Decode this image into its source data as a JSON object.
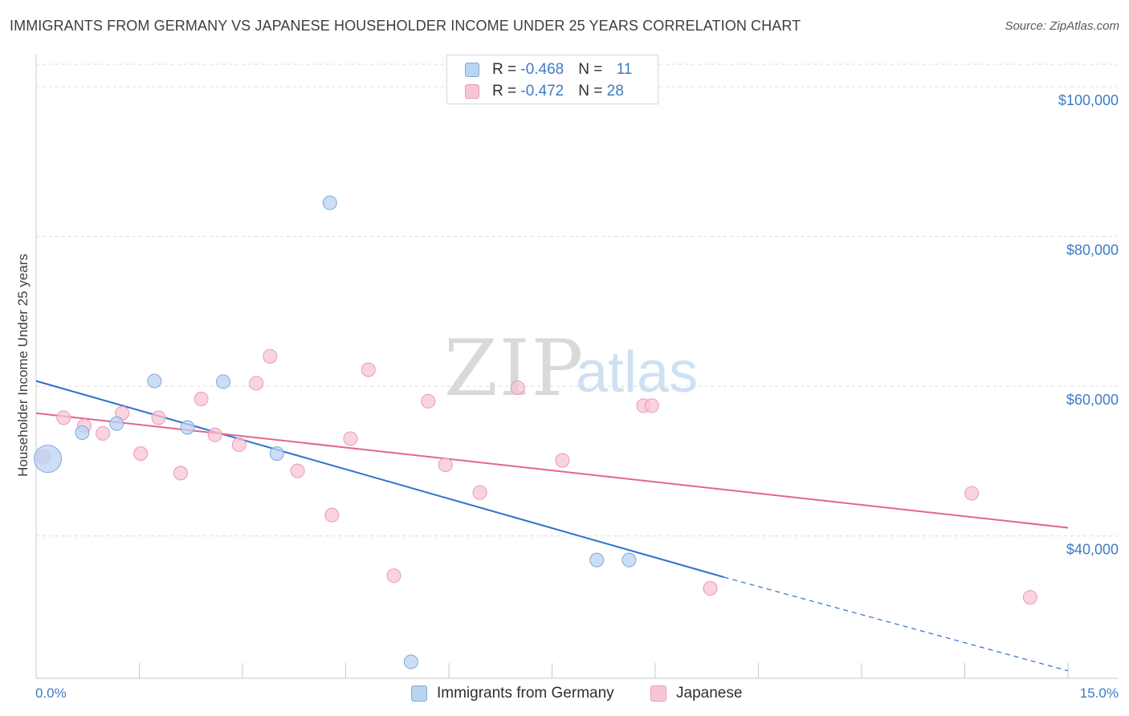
{
  "header": {
    "title": "IMMIGRANTS FROM GERMANY VS JAPANESE HOUSEHOLDER INCOME UNDER 25 YEARS CORRELATION CHART",
    "source": "Source: ZipAtlas.com"
  },
  "watermark": {
    "zip": "ZIP",
    "atlas": "atlas"
  },
  "legend": {
    "rows": [
      {
        "r_label": "R = ",
        "r_value": "-0.468",
        "n_label": "N = ",
        "n_value": "11"
      },
      {
        "r_label": "R = ",
        "r_value": "-0.472",
        "n_label": "N = ",
        "n_value": "28"
      }
    ]
  },
  "bottom_legend": {
    "germany": "Immigrants from Germany",
    "japanese": "Japanese"
  },
  "colors": {
    "germany_fill": "#b9d3f2",
    "germany_stroke": "#7fa9dc",
    "germany_line": "#2f6fce",
    "japanese_fill": "#f7c6d5",
    "japanese_stroke": "#ec97b2",
    "japanese_line": "#e06591",
    "tick_text": "#3f7ac6",
    "grid": "#dcdcdc"
  },
  "chart_data": {
    "type": "scatter",
    "title": "IMMIGRANTS FROM GERMANY VS JAPANESE HOUSEHOLDER INCOME UNDER 25 YEARS CORRELATION CHART",
    "xlabel": "",
    "ylabel": "Householder Income Under 25 years",
    "xlim": [
      0,
      15
    ],
    "ylim": [
      21000,
      103000
    ],
    "x_tick_labels": [
      "0.0%",
      "15.0%"
    ],
    "y_ticks": [
      {
        "value": 40000,
        "label": "$40,000"
      },
      {
        "value": 60000,
        "label": "$60,000"
      },
      {
        "value": 80000,
        "label": "$80,000"
      },
      {
        "value": 100000,
        "label": "$100,000"
      }
    ],
    "grid": true,
    "series": [
      {
        "name": "Immigrants from Germany",
        "r": -0.468,
        "n": 11,
        "points": [
          {
            "x": 0.17,
            "y": 50300,
            "big": true
          },
          {
            "x": 0.67,
            "y": 53800
          },
          {
            "x": 1.17,
            "y": 55000
          },
          {
            "x": 1.72,
            "y": 60700
          },
          {
            "x": 2.2,
            "y": 54500
          },
          {
            "x": 2.72,
            "y": 60600
          },
          {
            "x": 3.5,
            "y": 51000
          },
          {
            "x": 4.27,
            "y": 84500
          },
          {
            "x": 5.45,
            "y": 23200
          },
          {
            "x": 8.15,
            "y": 36800
          },
          {
            "x": 8.62,
            "y": 36800
          }
        ],
        "trend": {
          "x0": 0,
          "y0": 60700,
          "x1": 10.0,
          "y1": 34500,
          "dash_to_x": 15,
          "dash_to_y": 22000
        }
      },
      {
        "name": "Japanese",
        "r": -0.472,
        "n": 28,
        "points": [
          {
            "x": 0.1,
            "y": 50500
          },
          {
            "x": 0.4,
            "y": 55800
          },
          {
            "x": 0.7,
            "y": 54700
          },
          {
            "x": 0.97,
            "y": 53700
          },
          {
            "x": 1.25,
            "y": 56400
          },
          {
            "x": 1.52,
            "y": 51000
          },
          {
            "x": 1.78,
            "y": 55800
          },
          {
            "x": 2.1,
            "y": 48400
          },
          {
            "x": 2.4,
            "y": 58300
          },
          {
            "x": 2.6,
            "y": 53500
          },
          {
            "x": 2.95,
            "y": 52200
          },
          {
            "x": 3.2,
            "y": 60400
          },
          {
            "x": 3.4,
            "y": 64000
          },
          {
            "x": 3.8,
            "y": 48700
          },
          {
            "x": 4.3,
            "y": 42800
          },
          {
            "x": 4.57,
            "y": 53000
          },
          {
            "x": 4.83,
            "y": 62200
          },
          {
            "x": 5.2,
            "y": 34700
          },
          {
            "x": 5.7,
            "y": 58000
          },
          {
            "x": 5.95,
            "y": 49500
          },
          {
            "x": 6.45,
            "y": 45800
          },
          {
            "x": 7.0,
            "y": 59800
          },
          {
            "x": 7.65,
            "y": 50100
          },
          {
            "x": 8.83,
            "y": 57400
          },
          {
            "x": 8.95,
            "y": 57400
          },
          {
            "x": 9.8,
            "y": 33000
          },
          {
            "x": 13.6,
            "y": 45700
          },
          {
            "x": 14.45,
            "y": 31800
          }
        ],
        "trend": {
          "x0": 0,
          "y0": 56400,
          "x1": 15,
          "y1": 41100
        }
      }
    ]
  }
}
